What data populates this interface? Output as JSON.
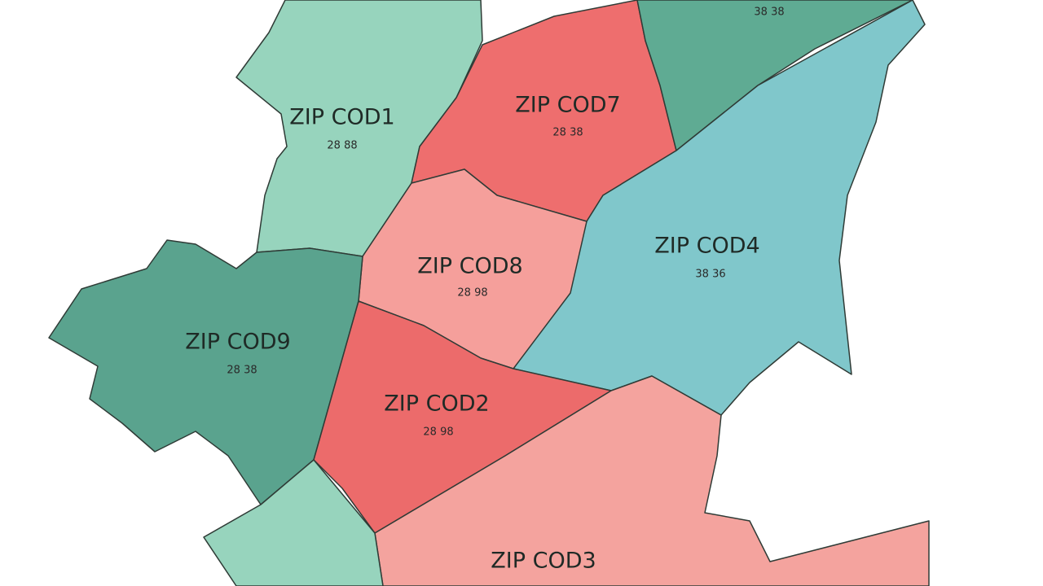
{
  "map": {
    "regions": [
      {
        "label": "ZIP COD1",
        "sublabel": "28 88"
      },
      {
        "label": "ZIP COD7",
        "sublabel": "28 38"
      },
      {
        "sublabel": "38 38"
      },
      {
        "label": "ZIP COD8",
        "sublabel": "28 98"
      },
      {
        "label": "ZIP COD4",
        "sublabel": "38 36"
      },
      {
        "label": "ZIP COD9",
        "sublabel": "28 38"
      },
      {
        "label": "ZIP COD2",
        "sublabel": "28 98"
      },
      {
        "label": "ZIP COD3"
      }
    ]
  }
}
